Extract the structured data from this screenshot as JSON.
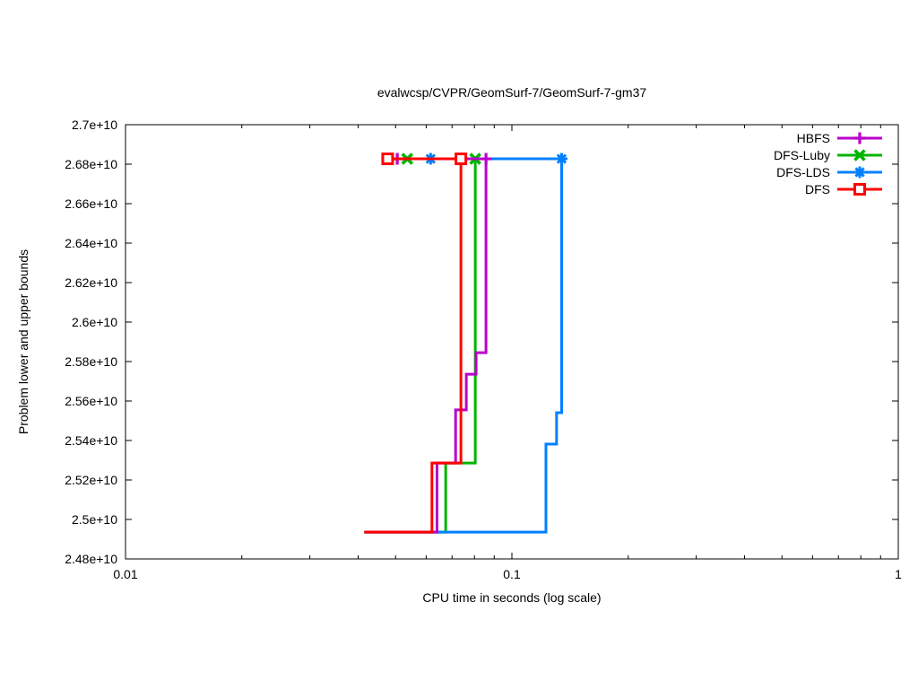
{
  "chart_data": {
    "type": "line",
    "title": "evalwcsp/CVPR/GeomSurf-7/GeomSurf-7-gm37",
    "xlabel": "CPU time in seconds (log scale)",
    "ylabel": "Problem lower and upper bounds",
    "x_scale": "log",
    "xlim": [
      0.01,
      1
    ],
    "ylim": [
      24800000000.0,
      27000000000.0
    ],
    "x_ticks": [
      {
        "v": 0.01,
        "label": "0.01"
      },
      {
        "v": 0.1,
        "label": "0.1"
      },
      {
        "v": 1,
        "label": "1"
      }
    ],
    "x_minor_ticks": [
      0.02,
      0.03,
      0.04,
      0.05,
      0.06,
      0.07,
      0.08,
      0.09,
      0.2,
      0.3,
      0.4,
      0.5,
      0.6,
      0.7,
      0.8,
      0.9
    ],
    "y_ticks": [
      {
        "v": 24800000000.0,
        "label": "2.48e+10"
      },
      {
        "v": 25000000000.0,
        "label": "2.5e+10"
      },
      {
        "v": 25200000000.0,
        "label": "2.52e+10"
      },
      {
        "v": 25400000000.0,
        "label": "2.54e+10"
      },
      {
        "v": 25600000000.0,
        "label": "2.56e+10"
      },
      {
        "v": 25800000000.0,
        "label": "2.58e+10"
      },
      {
        "v": 26000000000.0,
        "label": "2.6e+10"
      },
      {
        "v": 26200000000.0,
        "label": "2.62e+10"
      },
      {
        "v": 26400000000.0,
        "label": "2.64e+10"
      },
      {
        "v": 26600000000.0,
        "label": "2.66e+10"
      },
      {
        "v": 26800000000.0,
        "label": "2.68e+10"
      },
      {
        "v": 27000000000.0,
        "label": "2.7e+10"
      }
    ],
    "legend_position": "top-right",
    "grid": false,
    "z_order": [
      1,
      2,
      0,
      3
    ],
    "series": [
      {
        "name": "HBFS",
        "color": "#bb00cc",
        "marker": "plus",
        "upper_bound": [
          [
            0.0505,
            26827000000.0
          ],
          [
            0.0857,
            26827000000.0
          ]
        ],
        "lower_bound": [
          [
            0.0415,
            24936000000.0
          ],
          [
            0.064,
            24936000000.0
          ],
          [
            0.064,
            25286000000.0
          ],
          [
            0.0715,
            25286000000.0
          ],
          [
            0.0715,
            25555000000.0
          ],
          [
            0.0762,
            25555000000.0
          ],
          [
            0.0762,
            25736000000.0
          ],
          [
            0.0808,
            25736000000.0
          ],
          [
            0.0808,
            25845000000.0
          ],
          [
            0.0857,
            25845000000.0
          ],
          [
            0.0857,
            26827000000.0
          ]
        ]
      },
      {
        "name": "DFS-Luby",
        "color": "#00b400",
        "marker": "cross",
        "upper_bound": [
          [
            0.0536,
            26827000000.0
          ],
          [
            0.0804,
            26827000000.0
          ]
        ],
        "lower_bound": [
          [
            0.0415,
            24936000000.0
          ],
          [
            0.0674,
            24936000000.0
          ],
          [
            0.0674,
            25286000000.0
          ],
          [
            0.0804,
            25286000000.0
          ],
          [
            0.0804,
            26827000000.0
          ]
        ]
      },
      {
        "name": "DFS-LDS",
        "color": "#0080ff",
        "marker": "star",
        "upper_bound": [
          [
            0.0616,
            26827000000.0
          ],
          [
            0.1345,
            26827000000.0
          ]
        ],
        "lower_bound": [
          [
            0.0415,
            24936000000.0
          ],
          [
            0.1225,
            24936000000.0
          ],
          [
            0.1225,
            25382000000.0
          ],
          [
            0.1305,
            25382000000.0
          ],
          [
            0.1305,
            25541000000.0
          ],
          [
            0.1345,
            25541000000.0
          ],
          [
            0.1345,
            26827000000.0
          ]
        ]
      },
      {
        "name": "DFS",
        "color": "#ff0000",
        "marker": "square",
        "upper_bound": [
          [
            0.0477,
            26827000000.0
          ],
          [
            0.0738,
            26827000000.0
          ]
        ],
        "lower_bound": [
          [
            0.0415,
            24936000000.0
          ],
          [
            0.0621,
            24936000000.0
          ],
          [
            0.0621,
            25286000000.0
          ],
          [
            0.0738,
            25286000000.0
          ],
          [
            0.0738,
            26827000000.0
          ]
        ]
      }
    ]
  }
}
